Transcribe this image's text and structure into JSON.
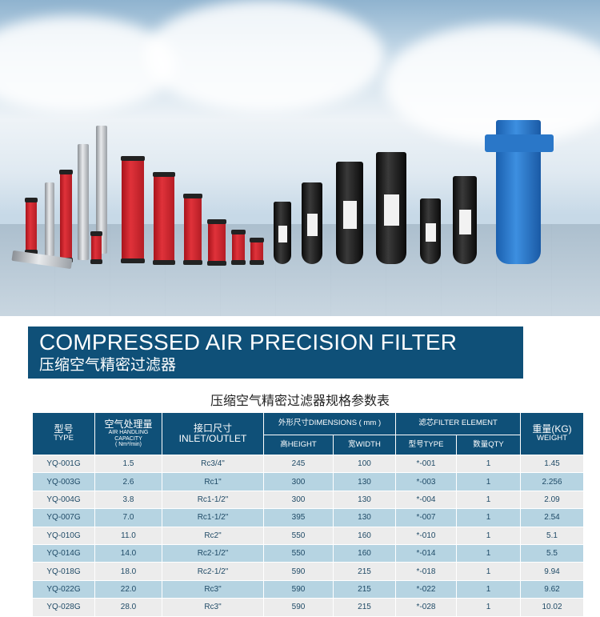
{
  "header": {
    "title_en": "COMPRESSED AIR PRECISION FILTER",
    "title_cn": "压缩空气精密过滤器"
  },
  "table_title": "压缩空气精密过滤器规格参数表",
  "columns": {
    "type_cn": "型号",
    "type_en": "TYPE",
    "capacity_cn": "空气处理量",
    "capacity_en1": "AIR HANDLING",
    "capacity_en2": "CAPACITY",
    "capacity_unit": "( Nm³/min)",
    "inlet_cn": "接口尺寸",
    "inlet_en": "INLET/OUTLET",
    "dimensions": "外形尺寸DIMENSIONS ( mm )",
    "height": "高HEIGHT",
    "width": "宽WIDTH",
    "element": "滤芯FILTER ELEMENT",
    "element_type": "型号TYPE",
    "qty": "数量QTY",
    "weight_cn": "重量(KG)",
    "weight_en": "WEIGHT"
  },
  "rows": [
    [
      "YQ-001G",
      "1.5",
      "Rc3/4\"",
      "245",
      "100",
      "*-001",
      "1",
      "1.45"
    ],
    [
      "YQ-003G",
      "2.6",
      "Rc1\"",
      "300",
      "130",
      "*-003",
      "1",
      "2.256"
    ],
    [
      "YQ-004G",
      "3.8",
      "Rc1-1/2\"",
      "300",
      "130",
      "*-004",
      "1",
      "2.09"
    ],
    [
      "YQ-007G",
      "7.0",
      "Rc1-1/2\"",
      "395",
      "130",
      "*-007",
      "1",
      "2.54"
    ],
    [
      "YQ-010G",
      "11.0",
      "Rc2\"",
      "550",
      "160",
      "*-010",
      "1",
      "5.1"
    ],
    [
      "YQ-014G",
      "14.0",
      "Rc2-1/2\"",
      "550",
      "160",
      "*-014",
      "1",
      "5.5"
    ],
    [
      "YQ-018G",
      "18.0",
      "Rc2-1/2\"",
      "590",
      "215",
      "*-018",
      "1",
      "9.94"
    ],
    [
      "YQ-022G",
      "22.0",
      "Rc3\"",
      "590",
      "215",
      "*-022",
      "1",
      "9.62"
    ],
    [
      "YQ-028G",
      "28.0",
      "Rc3\"",
      "590",
      "215",
      "*-028",
      "1",
      "10.02"
    ]
  ],
  "colors": {
    "brand_blue": "#0f5078",
    "row_alt": "#b6d4e2",
    "row": "#ececec"
  }
}
